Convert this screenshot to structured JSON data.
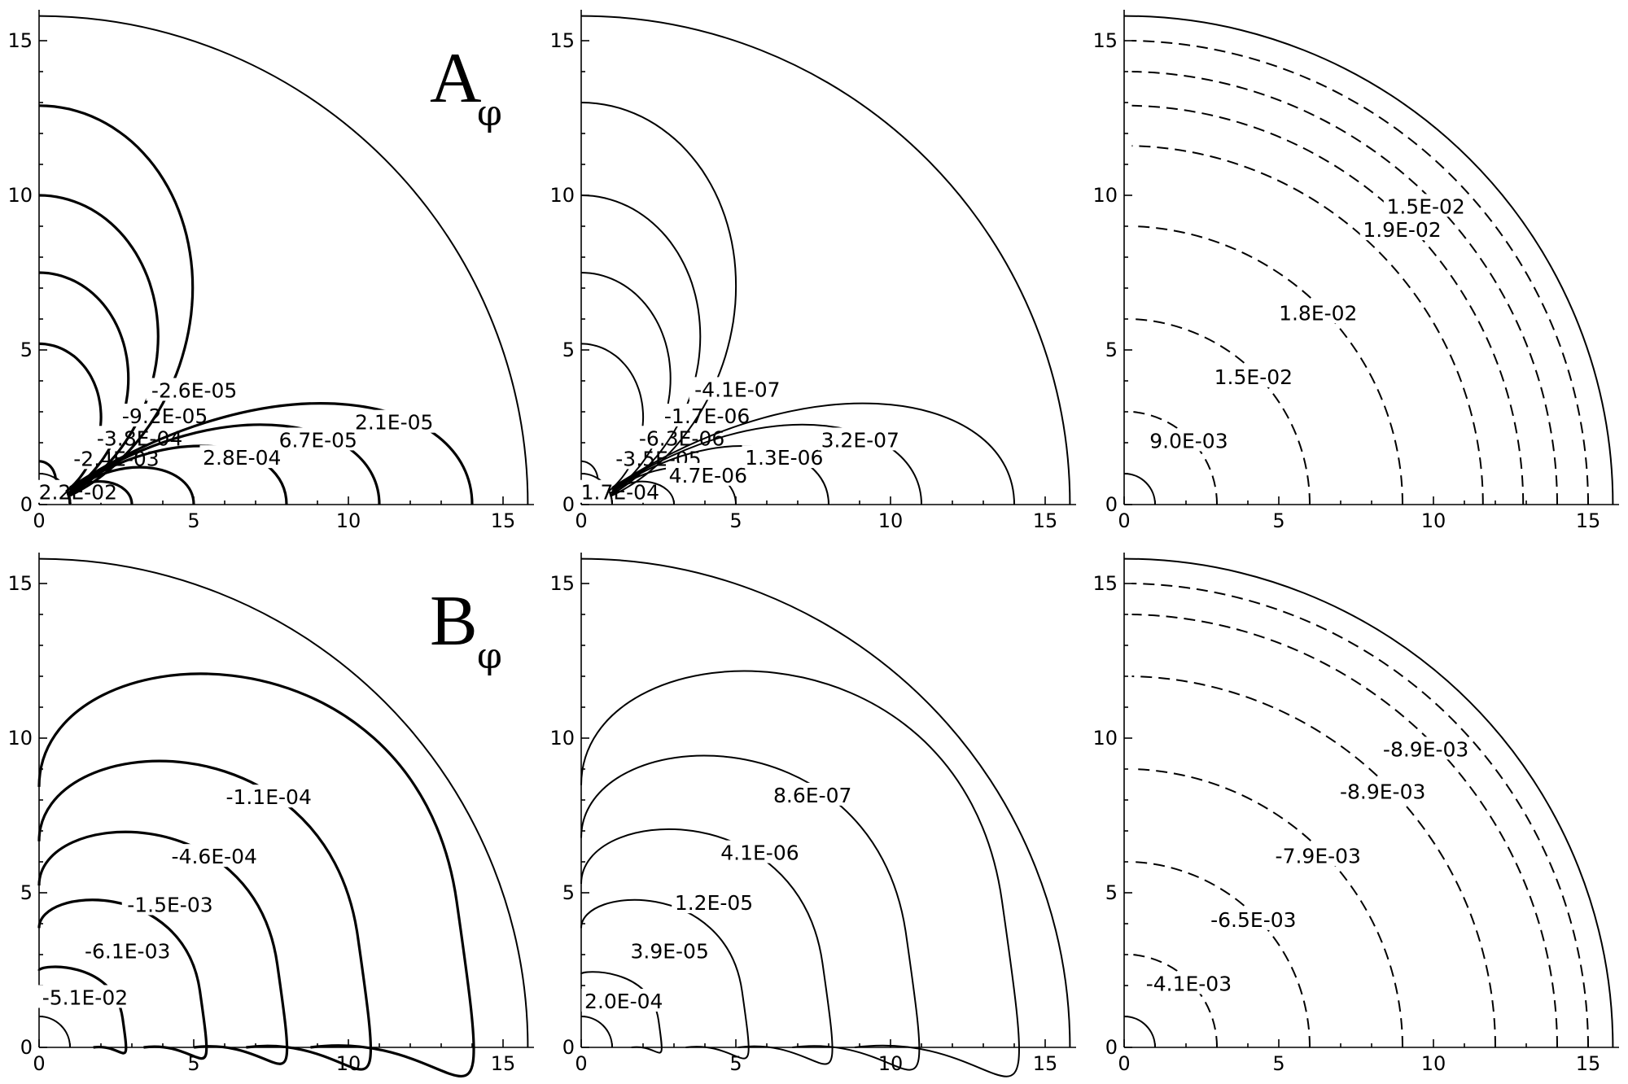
{
  "chart_data": [
    {
      "type": "contour",
      "panel": "top-left",
      "row_label": {
        "main": "A",
        "sub": "φ"
      },
      "xlim": [
        0,
        16
      ],
      "ylim": [
        0,
        16
      ],
      "xticks": [
        "0",
        "5",
        "10",
        "15"
      ],
      "yticks": [
        "0",
        "5",
        "10",
        "15"
      ],
      "line_style": "solid-bold",
      "north_lobes": [
        {
          "label": "2.2E-02",
          "apex": 1.4
        },
        {
          "label": "-2.4E-03",
          "apex": 5.2
        },
        {
          "label": "-3.8E-04",
          "apex": 7.5
        },
        {
          "label": "-9.2E-05",
          "apex": 10.0
        },
        {
          "label": "-2.6E-05",
          "apex": 12.9
        }
      ],
      "east_lobes": [
        {
          "label": "",
          "end": 3.0
        },
        {
          "label": "",
          "end": 5.0
        },
        {
          "label": "2.8E-04",
          "end": 8.0
        },
        {
          "label": "6.7E-05",
          "end": 11.0
        },
        {
          "label": "2.1E-05",
          "end": 14.0
        }
      ]
    },
    {
      "type": "contour",
      "panel": "top-middle",
      "xlim": [
        0,
        16
      ],
      "ylim": [
        0,
        16
      ],
      "xticks": [
        "0",
        "5",
        "10",
        "15"
      ],
      "yticks": [
        "0",
        "5",
        "10",
        "15"
      ],
      "line_style": "solid",
      "north_lobes": [
        {
          "label": "1.7E-04",
          "apex": 1.4
        },
        {
          "label": "-3.5E-05",
          "apex": 5.2
        },
        {
          "label": "-6.3E-06",
          "apex": 7.5
        },
        {
          "label": "-1.7E-06",
          "apex": 10.0
        },
        {
          "label": "-4.1E-07",
          "apex": 13.0
        }
      ],
      "east_lobes": [
        {
          "label": "",
          "end": 3.0
        },
        {
          "label": "4.7E-06",
          "end": 5.0
        },
        {
          "label": "1.3E-06",
          "end": 8.0
        },
        {
          "label": "3.2E-07",
          "end": 11.0
        },
        {
          "label": "",
          "end": 14.0
        }
      ]
    },
    {
      "type": "contour",
      "panel": "top-right",
      "xlim": [
        0,
        16
      ],
      "ylim": [
        0,
        16
      ],
      "xticks": [
        "0",
        "5",
        "10",
        "15"
      ],
      "yticks": [
        "0",
        "5",
        "10",
        "15"
      ],
      "line_style": "dashed",
      "arcs": [
        {
          "label": "9.0E-03",
          "r": 3.0
        },
        {
          "label": "1.5E-02",
          "r": 6.0
        },
        {
          "label": "1.8E-02",
          "r": 9.0
        },
        {
          "label": "",
          "r": 11.6
        },
        {
          "label": "1.9E-02",
          "r": 12.9
        },
        {
          "label": "1.5E-02",
          "r": 14.0
        },
        {
          "label": "",
          "r": 15.0
        }
      ]
    },
    {
      "type": "contour",
      "panel": "bottom-left",
      "row_label": {
        "main": "B",
        "sub": "φ"
      },
      "xlim": [
        0,
        16
      ],
      "ylim": [
        0,
        16
      ],
      "xticks": [
        "0",
        "5",
        "10",
        "15"
      ],
      "yticks": [
        "0",
        "5",
        "10",
        "15"
      ],
      "line_style": "solid-bold",
      "loops": [
        {
          "label": "-5.1E-02",
          "reach": 2.7
        },
        {
          "label": "-6.1E-03",
          "reach": 5.2
        },
        {
          "label": "-1.5E-03",
          "reach": 7.7
        },
        {
          "label": "-4.6E-04",
          "reach": 10.3
        },
        {
          "label": "-1.1E-04",
          "reach": 13.5
        }
      ]
    },
    {
      "type": "contour",
      "panel": "bottom-middle",
      "xlim": [
        0,
        16
      ],
      "ylim": [
        0,
        16
      ],
      "xticks": [
        "0",
        "5",
        "10",
        "15"
      ],
      "yticks": [
        "0",
        "5",
        "10",
        "15"
      ],
      "line_style": "solid",
      "loops": [
        {
          "label": "2.0E-04",
          "reach": 2.5
        },
        {
          "label": "3.9E-05",
          "reach": 5.2
        },
        {
          "label": "1.2E-05",
          "reach": 7.8
        },
        {
          "label": "4.1E-06",
          "reach": 10.5
        },
        {
          "label": "8.6E-07",
          "reach": 13.6
        }
      ]
    },
    {
      "type": "contour",
      "panel": "bottom-right",
      "xlim": [
        0,
        16
      ],
      "ylim": [
        0,
        16
      ],
      "xticks": [
        "0",
        "5",
        "10",
        "15"
      ],
      "yticks": [
        "0",
        "5",
        "10",
        "15"
      ],
      "line_style": "dashed",
      "arcs": [
        {
          "label": "-4.1E-03",
          "r": 3.0
        },
        {
          "label": "-6.5E-03",
          "r": 6.0
        },
        {
          "label": "-7.9E-03",
          "r": 9.0
        },
        {
          "label": "-8.9E-03",
          "r": 12.0
        },
        {
          "label": "-8.9E-03",
          "r": 14.0
        },
        {
          "label": "",
          "r": 15.0
        }
      ]
    }
  ]
}
